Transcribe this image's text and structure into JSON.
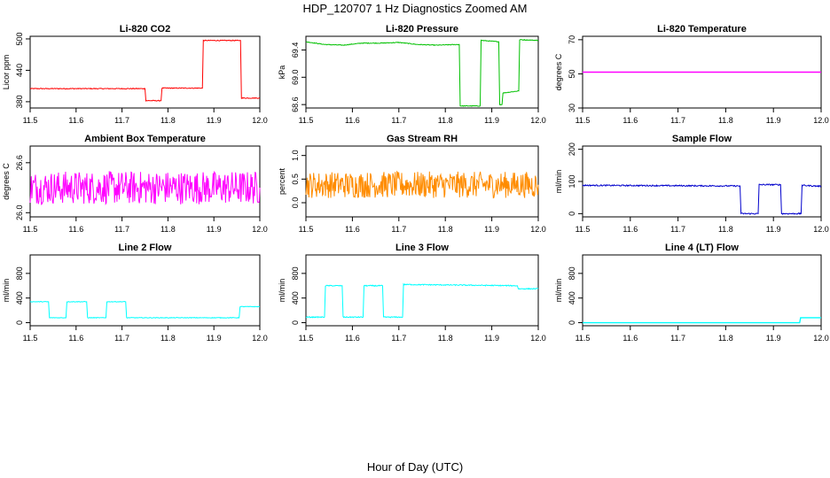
{
  "page": {
    "title": "HDP_120707  1 Hz Diagnostics Zoomed AM",
    "xlabel": "Hour of Day (UTC)"
  },
  "chart_data": [
    {
      "type": "line",
      "title": "Li-820 CO2",
      "ylabel": "Licor ppm",
      "xlim": [
        11.5,
        12.0
      ],
      "ylim": [
        368,
        505
      ],
      "yticks": [
        380,
        440,
        500
      ],
      "xticks": [
        11.5,
        11.6,
        11.7,
        11.8,
        11.9,
        12.0
      ],
      "color": "#ff0000",
      "noise": 0.8,
      "series": [
        {
          "name": "co2",
          "x": [
            11.5,
            11.75,
            11.752,
            11.785,
            11.787,
            11.875,
            11.877,
            11.958,
            11.96,
            12.0
          ],
          "y": [
            405,
            405,
            382,
            382,
            406,
            406,
            497,
            497,
            387,
            387
          ]
        }
      ]
    },
    {
      "type": "line",
      "title": "Li-820 Pressure",
      "ylabel": "kPa",
      "xlim": [
        11.5,
        12.0
      ],
      "ylim": [
        68.55,
        69.6
      ],
      "yticks": [
        68.6,
        69.0,
        69.4
      ],
      "xticks": [
        11.5,
        11.6,
        11.7,
        11.8,
        11.9,
        12.0
      ],
      "color": "#00c000",
      "noise": 0.005,
      "series": [
        {
          "name": "pressure",
          "x": [
            11.5,
            11.54,
            11.58,
            11.62,
            11.66,
            11.7,
            11.74,
            11.78,
            11.83,
            11.832,
            11.875,
            11.877,
            11.915,
            11.917,
            11.922,
            11.924,
            11.958,
            11.96,
            12.0
          ],
          "y": [
            69.52,
            69.48,
            69.47,
            69.5,
            69.5,
            69.51,
            69.48,
            69.47,
            69.48,
            68.58,
            68.58,
            69.54,
            69.52,
            68.6,
            68.6,
            68.77,
            68.8,
            69.55,
            69.54
          ]
        }
      ]
    },
    {
      "type": "line",
      "title": "Li-820 Temperature",
      "ylabel": "degrees C",
      "xlim": [
        11.5,
        12.0
      ],
      "ylim": [
        30,
        72
      ],
      "yticks": [
        30,
        50,
        70
      ],
      "xticks": [
        11.5,
        11.6,
        11.7,
        11.8,
        11.9,
        12.0
      ],
      "color": "#ff00ff",
      "noise": 0,
      "series": [
        {
          "name": "temp",
          "x": [
            11.5,
            12.0
          ],
          "y": [
            51,
            51
          ]
        }
      ]
    },
    {
      "type": "line",
      "title": "Ambient Box Temperature",
      "ylabel": "degrees C",
      "xlim": [
        11.5,
        12.0
      ],
      "ylim": [
        25.95,
        26.8
      ],
      "yticks": [
        26.0,
        26.6
      ],
      "xticks": [
        11.5,
        11.6,
        11.7,
        11.8,
        11.9,
        12.0
      ],
      "color": "#ff00ff",
      "noise": 0.2,
      "series": [
        {
          "name": "boxtemp",
          "x": [
            11.5,
            12.0
          ],
          "y": [
            26.3,
            26.3
          ]
        }
      ]
    },
    {
      "type": "line",
      "title": "Gas Stream RH",
      "ylabel": "percent",
      "xlim": [
        11.5,
        12.0
      ],
      "ylim": [
        -0.3,
        1.2
      ],
      "yticks": [
        0.0,
        0.5,
        1.0
      ],
      "xticks": [
        11.5,
        11.6,
        11.7,
        11.8,
        11.9,
        12.0
      ],
      "color": "#ff8c00",
      "noise": 0.28,
      "series": [
        {
          "name": "rh",
          "x": [
            11.5,
            12.0
          ],
          "y": [
            0.38,
            0.38
          ]
        }
      ]
    },
    {
      "type": "line",
      "title": "Sample Flow",
      "ylabel": "ml/min",
      "xlim": [
        11.5,
        12.0
      ],
      "ylim": [
        -10,
        210
      ],
      "yticks": [
        0,
        100,
        200
      ],
      "xticks": [
        11.5,
        11.6,
        11.7,
        11.8,
        11.9,
        12.0
      ],
      "color": "#0000cc",
      "noise": 2,
      "series": [
        {
          "name": "sampleflow",
          "x": [
            11.5,
            11.83,
            11.832,
            11.868,
            11.87,
            11.915,
            11.917,
            11.958,
            11.96,
            12.0
          ],
          "y": [
            88,
            86,
            0,
            0,
            90,
            90,
            0,
            0,
            88,
            85
          ]
        }
      ]
    },
    {
      "type": "line",
      "title": "Line 2 Flow",
      "ylabel": "ml/min",
      "xlim": [
        11.5,
        12.0
      ],
      "ylim": [
        -50,
        1100
      ],
      "yticks": [
        0,
        400,
        800
      ],
      "xticks": [
        11.5,
        11.6,
        11.7,
        11.8,
        11.9,
        12.0
      ],
      "color": "#00ffff",
      "noise": 5,
      "series": [
        {
          "name": "line2",
          "x": [
            11.5,
            11.54,
            11.542,
            11.578,
            11.58,
            11.623,
            11.625,
            11.665,
            11.667,
            11.708,
            11.71,
            11.955,
            11.957,
            12.0
          ],
          "y": [
            340,
            340,
            80,
            80,
            340,
            340,
            80,
            80,
            340,
            340,
            80,
            80,
            260,
            260
          ]
        }
      ]
    },
    {
      "type": "line",
      "title": "Line 3 Flow",
      "ylabel": "ml/min",
      "xlim": [
        11.5,
        12.0
      ],
      "ylim": [
        -50,
        1100
      ],
      "yticks": [
        0,
        400,
        800
      ],
      "xticks": [
        11.5,
        11.6,
        11.7,
        11.8,
        11.9,
        12.0
      ],
      "color": "#00ffff",
      "noise": 8,
      "series": [
        {
          "name": "line3",
          "x": [
            11.5,
            11.54,
            11.542,
            11.578,
            11.58,
            11.623,
            11.625,
            11.665,
            11.667,
            11.708,
            11.71,
            11.955,
            11.957,
            12.0
          ],
          "y": [
            90,
            90,
            600,
            600,
            90,
            90,
            600,
            600,
            90,
            90,
            620,
            600,
            550,
            550
          ]
        }
      ]
    },
    {
      "type": "line",
      "title": "Line 4 (LT) Flow",
      "ylabel": "ml/min",
      "xlim": [
        11.5,
        12.0
      ],
      "ylim": [
        -50,
        1100
      ],
      "yticks": [
        0,
        400,
        800
      ],
      "xticks": [
        11.5,
        11.6,
        11.7,
        11.8,
        11.9,
        12.0
      ],
      "color": "#00ffff",
      "noise": 0,
      "series": [
        {
          "name": "line4",
          "x": [
            11.5,
            11.955,
            11.957,
            12.0
          ],
          "y": [
            0,
            0,
            80,
            80
          ]
        }
      ]
    }
  ]
}
